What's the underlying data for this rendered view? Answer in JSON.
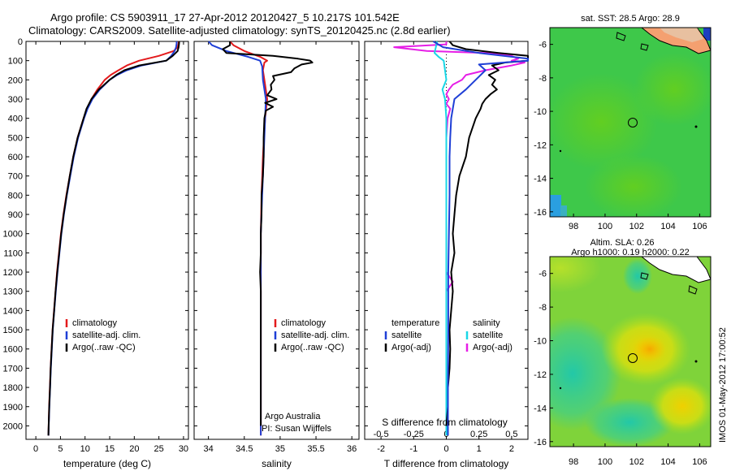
{
  "header": {
    "line1": "Argo profile: CS 5903911_17 27-Apr-2012 20120427_5 10.217S 101.542E",
    "line2": "Climatology: CARS2009. Satellite-adjusted climatology: synTS_20120425.nc (2.8d earlier)"
  },
  "side_label": "IMOS 01-May-2012 17:00:52",
  "chart_data": [
    {
      "type": "line",
      "panel": "temperature",
      "xlabel": "temperature (deg C)",
      "xlim": [
        -2,
        31
      ],
      "xticks": [
        0,
        5,
        10,
        15,
        20,
        25,
        30
      ],
      "ylim": [
        0,
        2070
      ],
      "yaxis_inverted": true,
      "yticks": [
        0,
        100,
        200,
        300,
        400,
        500,
        600,
        700,
        800,
        900,
        1000,
        1100,
        1200,
        1300,
        1400,
        1500,
        1600,
        1700,
        1800,
        1900,
        2000
      ],
      "legend": [
        "climatology",
        "satellite-adj. clim.",
        "Argo(..raw -QC)"
      ],
      "colors": {
        "climatology": "#e31a1c",
        "satellite": "#1f3fd6",
        "argo": "#000000"
      },
      "series": [
        {
          "name": "climatology",
          "color": "#e31a1c",
          "depth": [
            0,
            10,
            30,
            50,
            75,
            100,
            125,
            150,
            175,
            200,
            250,
            300,
            350,
            400,
            500,
            600,
            700,
            800,
            900,
            1000,
            1100,
            1200,
            1300,
            1400,
            1500,
            1600,
            1700,
            1800,
            1900,
            2000,
            2050
          ],
          "values": [
            29.0,
            29.0,
            28.8,
            28.0,
            25.0,
            21.0,
            18.5,
            16.8,
            15.2,
            14.0,
            12.5,
            11.3,
            10.4,
            9.7,
            8.5,
            7.6,
            6.9,
            6.2,
            5.6,
            5.1,
            4.7,
            4.3,
            4.0,
            3.7,
            3.4,
            3.2,
            3.0,
            2.85,
            2.7,
            2.6,
            2.55
          ]
        },
        {
          "name": "satellite-adj. clim.",
          "color": "#1f3fd6",
          "depth": [
            0,
            10,
            30,
            50,
            75,
            100,
            125,
            150,
            175,
            200,
            250,
            300,
            350,
            400,
            500,
            600,
            700,
            800,
            900,
            1000,
            1100,
            1200,
            1300,
            1400,
            1500,
            1600,
            1700,
            1800,
            1900,
            2000,
            2050
          ],
          "values": [
            28.6,
            28.6,
            28.5,
            28.2,
            27.5,
            26.5,
            21.5,
            18.5,
            16.5,
            15.0,
            13.0,
            11.5,
            10.5,
            9.8,
            8.6,
            7.7,
            7.0,
            6.3,
            5.7,
            5.2,
            4.8,
            4.4,
            4.05,
            3.75,
            3.45,
            3.25,
            3.05,
            2.9,
            2.75,
            2.62,
            2.57
          ]
        },
        {
          "name": "Argo(..raw -QC)",
          "color": "#000000",
          "depth": [
            0,
            10,
            30,
            50,
            75,
            100,
            125,
            150,
            175,
            200,
            250,
            300,
            350,
            400,
            500,
            600,
            700,
            800,
            900,
            1000,
            1100,
            1200,
            1300,
            1400,
            1500,
            1600,
            1700,
            1800,
            1900,
            2000,
            2050
          ],
          "values": [
            29.1,
            29.1,
            29.0,
            28.8,
            27.8,
            26.5,
            21.0,
            18.0,
            16.3,
            15.0,
            12.8,
            11.3,
            10.3,
            9.7,
            8.5,
            7.6,
            6.9,
            6.25,
            5.65,
            5.15,
            4.75,
            4.35,
            4.0,
            3.72,
            3.42,
            3.22,
            3.02,
            2.88,
            2.72,
            2.6,
            2.55
          ]
        }
      ]
    },
    {
      "type": "line",
      "panel": "salinity",
      "xlabel": "salinity",
      "xlim": [
        33.8,
        36.1
      ],
      "xticks": [
        34,
        34.5,
        35,
        35.5,
        36
      ],
      "ylim": [
        0,
        2070
      ],
      "yaxis_inverted": true,
      "legend": [
        "climatology",
        "satellite-adj. clim.",
        "Argo(..raw -QC)"
      ],
      "annotation": [
        "Argo Australia",
        "PI: Susan Wijffels"
      ],
      "series": [
        {
          "name": "climatology",
          "color": "#e31a1c",
          "depth": [
            0,
            20,
            50,
            80,
            100,
            110,
            150,
            200,
            300,
            400,
            600,
            800,
            1000,
            1200,
            1500,
            1800,
            2000,
            2050
          ],
          "values": [
            34.3,
            34.35,
            34.5,
            34.72,
            34.82,
            34.78,
            34.76,
            34.78,
            34.82,
            34.79,
            34.76,
            34.74,
            34.73,
            34.73,
            34.73,
            34.73,
            34.73,
            34.73
          ]
        },
        {
          "name": "satellite-adj. clim.",
          "color": "#1f3fd6",
          "depth": [
            0,
            20,
            50,
            80,
            100,
            130,
            200,
            300,
            400,
            600,
            800,
            1000,
            1200,
            1500,
            1800,
            2000,
            2050
          ],
          "values": [
            34.0,
            34.05,
            34.25,
            34.55,
            34.72,
            34.75,
            34.76,
            34.8,
            34.79,
            34.77,
            34.75,
            34.73,
            34.73,
            34.73,
            34.73,
            34.73,
            34.73
          ]
        },
        {
          "name": "Argo(..raw -QC)",
          "color": "#000000",
          "depth": [
            0,
            20,
            40,
            60,
            75,
            90,
            100,
            110,
            120,
            140,
            160,
            180,
            200,
            225,
            250,
            280,
            300,
            320,
            340,
            360,
            400,
            500,
            600,
            700,
            800,
            900,
            1000,
            1100,
            1200,
            1300,
            1400,
            1500,
            1600,
            1700,
            1800,
            1900,
            2000
          ],
          "values": [
            34.3,
            34.3,
            34.2,
            34.25,
            34.9,
            35.25,
            35.42,
            35.45,
            35.3,
            35.2,
            35.15,
            34.9,
            34.92,
            34.87,
            34.88,
            34.82,
            34.95,
            34.79,
            34.9,
            34.8,
            34.78,
            34.77,
            34.77,
            34.76,
            34.74,
            34.74,
            34.73,
            34.73,
            34.72,
            34.73,
            34.73,
            34.73,
            34.73,
            34.73,
            34.73,
            34.73,
            34.73
          ]
        }
      ]
    },
    {
      "type": "line",
      "panel": "difference",
      "xlabel": "T difference from climatology",
      "xlabel_top": "S difference from climatology",
      "xlim": [
        -2.5,
        2.5
      ],
      "xticks": [
        -2,
        -1,
        0,
        1,
        2
      ],
      "xlim_s": [
        -0.625,
        0.625
      ],
      "xticks_s": [
        -0.5,
        -0.25,
        0,
        0.25,
        0.5
      ],
      "ylim": [
        0,
        2070
      ],
      "yaxis_inverted": true,
      "legend_temperature_title": "temperature",
      "legend_salinity_title": "salinity",
      "legend": [
        "satellite",
        "Argo(-adj)",
        "satellite",
        "Argo(-adj)"
      ],
      "series": [
        {
          "name": "satellite",
          "group": "temperature",
          "color": "#1f3fd6",
          "depth": [
            0,
            30,
            60,
            90,
            100,
            120,
            150,
            200,
            250,
            300,
            400,
            500,
            600,
            800,
            1000,
            1200,
            1500,
            1800,
            2000,
            2050
          ],
          "values": [
            -0.4,
            -0.1,
            1.0,
            2.5,
            2.5,
            1.0,
            1.2,
            0.9,
            0.6,
            0.25,
            0.15,
            0.12,
            0.1,
            0.1,
            0.08,
            0.06,
            0.06,
            0.05,
            0.05,
            0.05
          ]
        },
        {
          "name": "Argo(-adj)",
          "group": "temperature",
          "color": "#000000",
          "depth": [
            0,
            20,
            40,
            60,
            75,
            90,
            100,
            110,
            125,
            150,
            175,
            200,
            225,
            250,
            275,
            300,
            325,
            350,
            400,
            500,
            600,
            700,
            800,
            900,
            1000,
            1100,
            1200,
            1300,
            1400,
            1500,
            1600,
            1700,
            1800,
            1900,
            2000
          ],
          "values": [
            0.1,
            0.2,
            0.6,
            1.6,
            2.5,
            2.5,
            2.5,
            1.8,
            1.4,
            1.6,
            1.3,
            1.5,
            1.4,
            1.55,
            1.35,
            1.2,
            1.1,
            1.05,
            0.9,
            0.7,
            0.6,
            0.4,
            0.3,
            0.25,
            0.2,
            0.25,
            0.15,
            0.2,
            0.15,
            0.1,
            0.12,
            0.1,
            0.05,
            0.05,
            0.0
          ]
        },
        {
          "name": "satellite",
          "group": "salinity",
          "color": "#19d7e6",
          "depth": [
            0,
            30,
            60,
            80,
            100,
            150,
            200,
            250,
            300,
            400,
            600,
            800,
            1000,
            1200,
            1500,
            1800,
            2000,
            2050
          ],
          "values": [
            -0.07,
            -0.08,
            -0.09,
            -0.06,
            -0.02,
            -0.01,
            0.0,
            -0.03,
            -0.01,
            0.0,
            0.0,
            0.0,
            0.0,
            0.0,
            0.0,
            0.0,
            0.0,
            0.0
          ]
        },
        {
          "name": "Argo(-adj)",
          "group": "salinity",
          "color": "#e61ee6",
          "depth": [
            0,
            15,
            30,
            50,
            60,
            75,
            90,
            100,
            110,
            125,
            150,
            175,
            200,
            225,
            250,
            275,
            300,
            325,
            350,
            400,
            500,
            600,
            800,
            1000,
            1200,
            1250,
            1300,
            1400,
            1500,
            1600,
            1800,
            2000
          ],
          "values": [
            0.0,
            0.0,
            -0.4,
            -0.15,
            0.3,
            0.5,
            0.55,
            0.5,
            0.6,
            0.5,
            0.3,
            0.15,
            0.12,
            0.05,
            0.02,
            0.0,
            0.02,
            0.0,
            0.03,
            0.01,
            0.0,
            0.0,
            0.0,
            0.0,
            0.0,
            0.05,
            0.0,
            0.0,
            0.0,
            0.0,
            0.0,
            0.0
          ]
        }
      ]
    },
    {
      "type": "heatmap",
      "panel": "sst-map",
      "title": "sat. SST: 28.5 Argo: 28.9",
      "xticks": [
        98,
        100,
        102,
        104,
        106
      ],
      "yticks": [
        -6,
        -8,
        -10,
        -12,
        -14,
        -16
      ],
      "xlim": [
        96.5,
        106.7
      ],
      "ylim": [
        -16.3,
        -5.0
      ],
      "argo_position": [
        101.542,
        -10.217
      ]
    },
    {
      "type": "heatmap",
      "panel": "sla-map",
      "title": "Altim. SLA: 0.26",
      "subtitle": "Argo h1000: 0.19 h2000: 0.22",
      "xticks": [
        98,
        100,
        102,
        104,
        106
      ],
      "yticks": [
        -6,
        -8,
        -10,
        -12,
        -14,
        -16
      ],
      "xlim": [
        96.5,
        106.7
      ],
      "ylim": [
        -16.3,
        -5.0
      ],
      "argo_position": [
        101.542,
        -10.217
      ]
    }
  ]
}
